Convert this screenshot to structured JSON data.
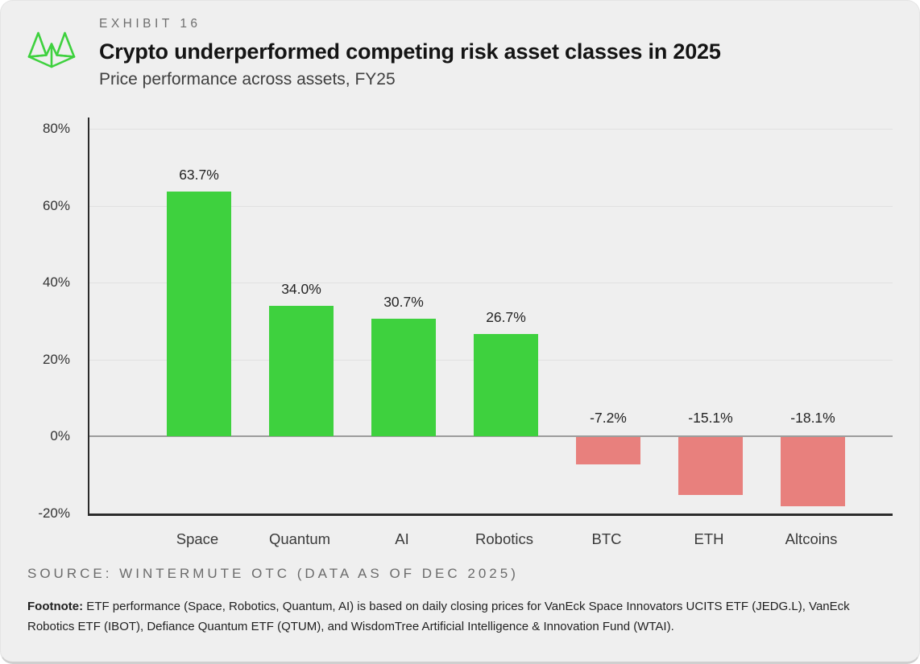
{
  "header": {
    "exhibit_label": "EXHIBIT 16",
    "title": "Crypto underperformed competing risk asset classes in 2025",
    "subtitle": "Price performance across assets, FY25"
  },
  "logo": {
    "name": "wintermute-logo",
    "color": "#3ed13e"
  },
  "chart_data": {
    "type": "bar",
    "title": "Crypto underperformed competing risk asset classes in 2025",
    "subtitle": "Price performance across assets, FY25",
    "categories": [
      "Space",
      "Quantum",
      "AI",
      "Robotics",
      "BTC",
      "ETH",
      "Altcoins"
    ],
    "values": [
      63.7,
      34.0,
      30.7,
      26.7,
      -7.2,
      -15.1,
      -18.1
    ],
    "value_labels": [
      "63.7%",
      "34.0%",
      "30.7%",
      "26.7%",
      "-7.2%",
      "-15.1%",
      "-18.1%"
    ],
    "xlabel": "",
    "ylabel": "",
    "y_tick_labels": [
      "80%",
      "60%",
      "40%",
      "20%",
      "0%",
      "-20%"
    ],
    "y_tick_values": [
      80,
      60,
      40,
      20,
      0,
      -20
    ],
    "ylim": [
      -20,
      83
    ],
    "grid": "horizontal",
    "legend": "none",
    "positive_color": "#3ed13e",
    "negative_color": "#e8807d"
  },
  "footer": {
    "source": "SOURCE: WINTERMUTE OTC (DATA AS OF DEC 2025)",
    "footnote_label": "Footnote:",
    "footnote_text": " ETF performance (Space, Robotics, Quantum, AI) is based on daily closing prices for VanEck Space Innovators UCITS ETF (JEDG.L), VanEck Robotics ETF (IBOT), Defiance Quantum ETF (QTUM), and WisdomTree Artificial Intelligence & Innovation Fund (WTAI)."
  }
}
